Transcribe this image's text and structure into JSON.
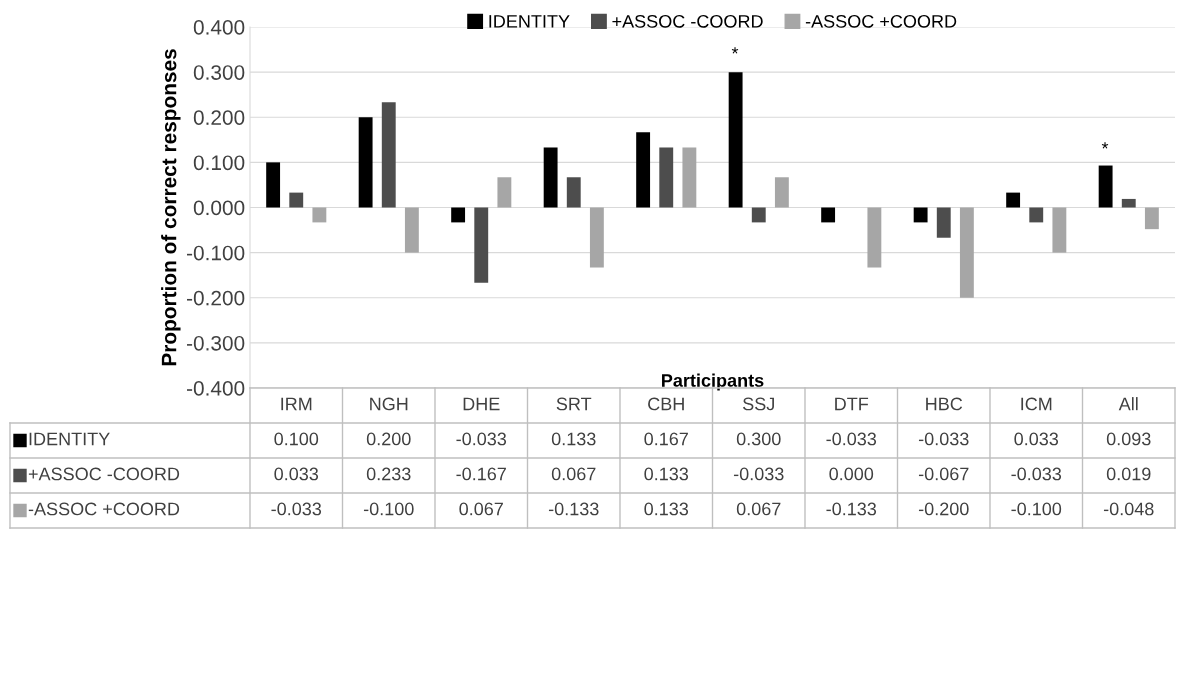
{
  "chart_data": {
    "type": "bar",
    "ylabel": "Proportion of correct responses",
    "xlabel": "Participants",
    "categories": [
      "IRM",
      "NGH",
      "DHE",
      "SRT",
      "CBH",
      "SSJ",
      "DTF",
      "HBC",
      "ICM",
      "All"
    ],
    "series": [
      {
        "name": "IDENTITY",
        "color": "#000000",
        "values": [
          0.1,
          0.2,
          -0.033,
          0.133,
          0.167,
          0.3,
          -0.033,
          -0.033,
          0.033,
          0.093
        ],
        "value_labels": [
          "0.100",
          "0.200",
          "-0.033",
          "0.133",
          "0.167",
          "0.300",
          "-0.033",
          "-0.033",
          "0.033",
          "0.093"
        ]
      },
      {
        "name": "+ASSOC -COORD",
        "color": "#4d4d4d",
        "values": [
          0.033,
          0.233,
          -0.167,
          0.067,
          0.133,
          -0.033,
          0.0,
          -0.067,
          -0.033,
          0.019
        ],
        "value_labels": [
          "0.033",
          "0.233",
          "-0.167",
          "0.067",
          "0.133",
          "-0.033",
          "0.000",
          "-0.067",
          "-0.033",
          "0.019"
        ]
      },
      {
        "name": "-ASSOC +COORD",
        "color": "#a6a6a6",
        "values": [
          -0.033,
          -0.1,
          0.067,
          -0.133,
          0.133,
          0.067,
          -0.133,
          -0.2,
          -0.1,
          -0.048
        ],
        "value_labels": [
          "-0.033",
          "-0.100",
          "0.067",
          "-0.133",
          "0.133",
          "0.067",
          "-0.133",
          "-0.200",
          "-0.100",
          "-0.048"
        ]
      }
    ],
    "ylim": [
      -0.4,
      0.4
    ],
    "yticks": [
      {
        "value": -0.4,
        "label": "-0.400"
      },
      {
        "value": -0.3,
        "label": "-0.300"
      },
      {
        "value": -0.2,
        "label": "-0.200"
      },
      {
        "value": -0.1,
        "label": "-0.100"
      },
      {
        "value": 0,
        "label": "0.000"
      },
      {
        "value": 0.1,
        "label": "0.100"
      },
      {
        "value": 0.2,
        "label": "0.200"
      },
      {
        "value": 0.3,
        "label": "0.300"
      },
      {
        "value": 0.4,
        "label": "0.400"
      }
    ],
    "grid": "y",
    "legend": "top",
    "annotations": [
      "*",
      "*"
    ]
  }
}
